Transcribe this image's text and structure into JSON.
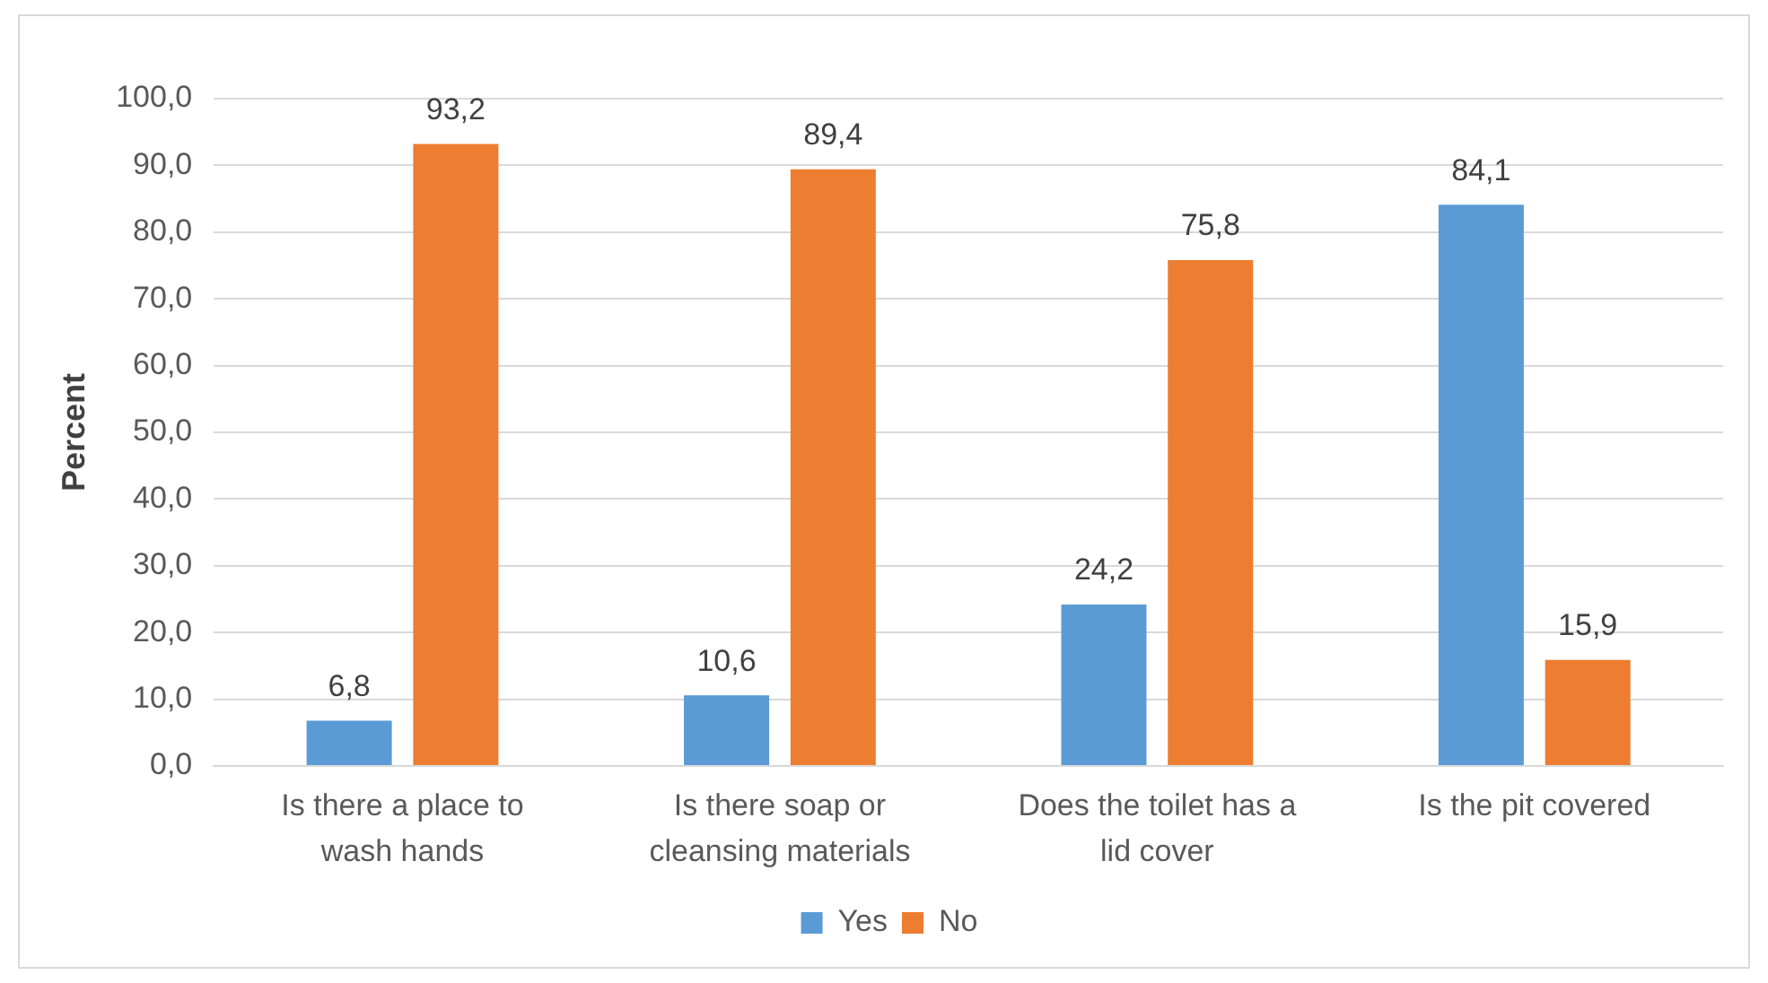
{
  "chart_data": {
    "type": "bar",
    "ylabel": "Percent",
    "categories": [
      "Is there a place to wash hands",
      "Is there soap or cleansing materials",
      "Does the toilet has a lid cover",
      "Is the pit covered"
    ],
    "series": [
      {
        "name": "Yes",
        "color": "#5b9bd5",
        "values": [
          6.8,
          10.6,
          24.2,
          84.1
        ],
        "value_labels": [
          "6,8",
          "10,6",
          "24,2",
          "84,1"
        ]
      },
      {
        "name": "No",
        "color": "#ed7d31",
        "values": [
          93.2,
          89.4,
          75.8,
          15.9
        ],
        "value_labels": [
          "93,2",
          "89,4",
          "75,8",
          "15,9"
        ]
      }
    ],
    "ylim": [
      0,
      100
    ],
    "yticks": [
      {
        "value": 0,
        "label": "0,0"
      },
      {
        "value": 10,
        "label": "10,0"
      },
      {
        "value": 20,
        "label": "20,0"
      },
      {
        "value": 30,
        "label": "30,0"
      },
      {
        "value": 40,
        "label": "40,0"
      },
      {
        "value": 50,
        "label": "50,0"
      },
      {
        "value": 60,
        "label": "60,0"
      },
      {
        "value": 70,
        "label": "70,0"
      },
      {
        "value": 80,
        "label": "80,0"
      },
      {
        "value": 90,
        "label": "90,0"
      },
      {
        "value": 100,
        "label": "100,0"
      }
    ],
    "grid": "y",
    "legend": "bottom"
  }
}
